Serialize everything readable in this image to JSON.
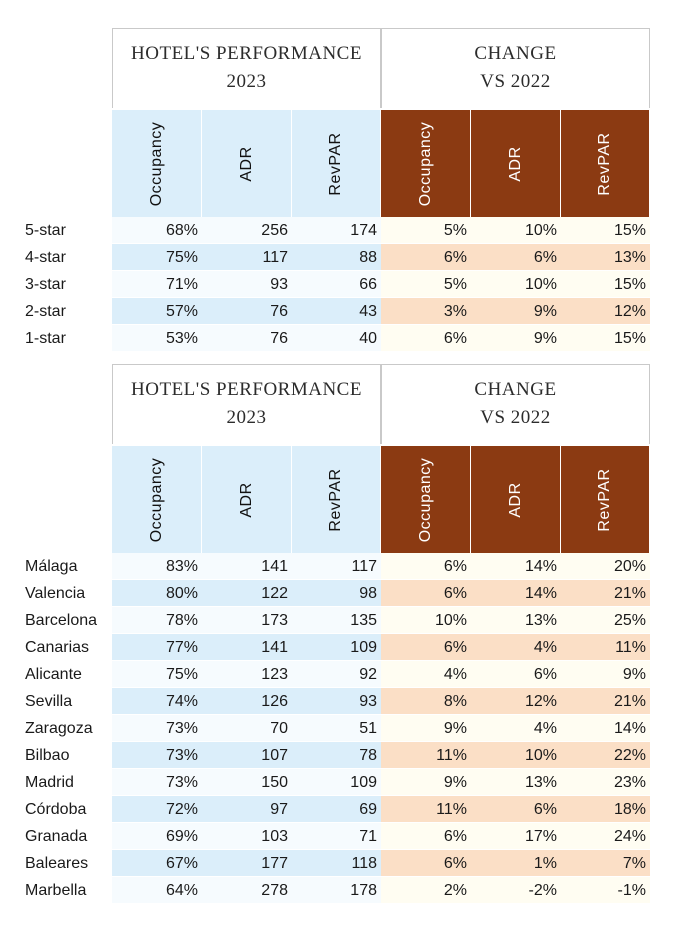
{
  "table1": {
    "header_perf": [
      "HOTEL'S PERFORMANCE",
      "2023"
    ],
    "header_change": [
      "CHANGE",
      "VS 2022"
    ],
    "columns": [
      "Occupancy",
      "ADR",
      "RevPAR",
      "Occupancy",
      "ADR",
      "RevPAR"
    ],
    "rows": [
      {
        "name": "5-star",
        "occ": "68%",
        "adr": "256",
        "revpar": "174",
        "d_occ": "5%",
        "d_adr": "10%",
        "d_revpar": "15%"
      },
      {
        "name": "4-star",
        "occ": "75%",
        "adr": "117",
        "revpar": "88",
        "d_occ": "6%",
        "d_adr": "6%",
        "d_revpar": "13%"
      },
      {
        "name": "3-star",
        "occ": "71%",
        "adr": "93",
        "revpar": "66",
        "d_occ": "5%",
        "d_adr": "10%",
        "d_revpar": "15%"
      },
      {
        "name": "2-star",
        "occ": "57%",
        "adr": "76",
        "revpar": "43",
        "d_occ": "3%",
        "d_adr": "9%",
        "d_revpar": "12%"
      },
      {
        "name": "1-star",
        "occ": "53%",
        "adr": "76",
        "revpar": "40",
        "d_occ": "6%",
        "d_adr": "9%",
        "d_revpar": "15%"
      }
    ]
  },
  "table2": {
    "header_perf": [
      "HOTEL'S PERFORMANCE",
      "2023"
    ],
    "header_change": [
      "CHANGE",
      "VS 2022"
    ],
    "columns": [
      "Occupancy",
      "ADR",
      "RevPAR",
      "Occupancy",
      "ADR",
      "RevPAR"
    ],
    "rows": [
      {
        "name": "Málaga",
        "occ": "83%",
        "adr": "141",
        "revpar": "117",
        "d_occ": "6%",
        "d_adr": "14%",
        "d_revpar": "20%"
      },
      {
        "name": "Valencia",
        "occ": "80%",
        "adr": "122",
        "revpar": "98",
        "d_occ": "6%",
        "d_adr": "14%",
        "d_revpar": "21%"
      },
      {
        "name": "Barcelona",
        "occ": "78%",
        "adr": "173",
        "revpar": "135",
        "d_occ": "10%",
        "d_adr": "13%",
        "d_revpar": "25%"
      },
      {
        "name": "Canarias",
        "occ": "77%",
        "adr": "141",
        "revpar": "109",
        "d_occ": "6%",
        "d_adr": "4%",
        "d_revpar": "11%"
      },
      {
        "name": "Alicante",
        "occ": "75%",
        "adr": "123",
        "revpar": "92",
        "d_occ": "4%",
        "d_adr": "6%",
        "d_revpar": "9%"
      },
      {
        "name": "Sevilla",
        "occ": "74%",
        "adr": "126",
        "revpar": "93",
        "d_occ": "8%",
        "d_adr": "12%",
        "d_revpar": "21%"
      },
      {
        "name": "Zaragoza",
        "occ": "73%",
        "adr": "70",
        "revpar": "51",
        "d_occ": "9%",
        "d_adr": "4%",
        "d_revpar": "14%"
      },
      {
        "name": "Bilbao",
        "occ": "73%",
        "adr": "107",
        "revpar": "78",
        "d_occ": "11%",
        "d_adr": "10%",
        "d_revpar": "22%"
      },
      {
        "name": "Madrid",
        "occ": "73%",
        "adr": "150",
        "revpar": "109",
        "d_occ": "9%",
        "d_adr": "13%",
        "d_revpar": "23%"
      },
      {
        "name": "Córdoba",
        "occ": "72%",
        "adr": "97",
        "revpar": "69",
        "d_occ": "11%",
        "d_adr": "6%",
        "d_revpar": "18%"
      },
      {
        "name": "Granada",
        "occ": "69%",
        "adr": "103",
        "revpar": "71",
        "d_occ": "6%",
        "d_adr": "17%",
        "d_revpar": "24%"
      },
      {
        "name": "Baleares",
        "occ": "67%",
        "adr": "177",
        "revpar": "118",
        "d_occ": "6%",
        "d_adr": "1%",
        "d_revpar": "7%"
      },
      {
        "name": "Marbella",
        "occ": "64%",
        "adr": "278",
        "revpar": "178",
        "d_occ": "2%",
        "d_adr": "-2%",
        "d_revpar": "-1%"
      }
    ]
  }
}
